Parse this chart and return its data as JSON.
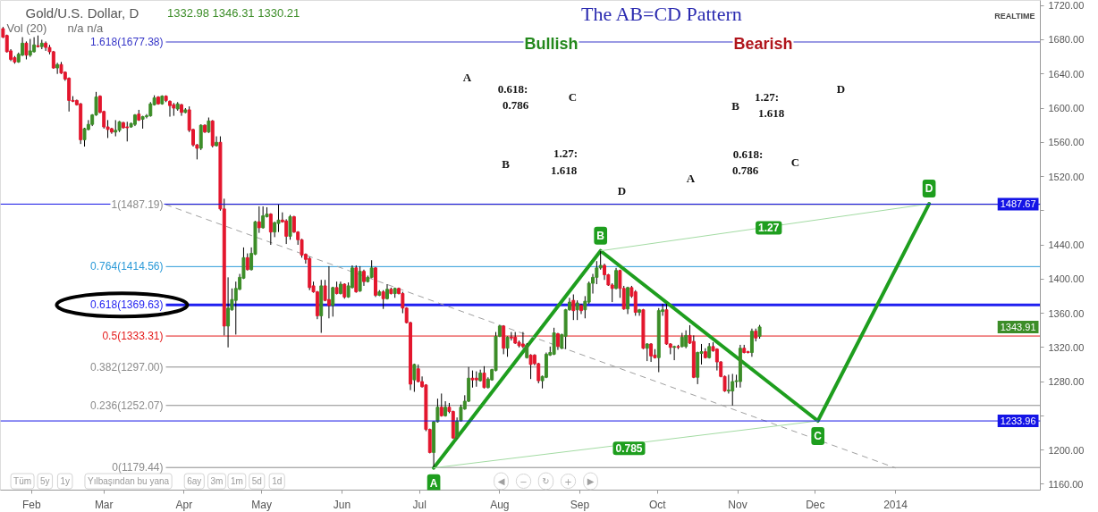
{
  "chart_data": {
    "type": "candlestick",
    "title": "Gold/U.S. Dollar, D",
    "xlim": [
      "2013-01-20",
      "2014-02-26"
    ],
    "ylim": [
      1153,
      1726
    ],
    "xticks": [
      {
        "value": "2013-02",
        "label": "Feb"
      },
      {
        "value": "2013-03",
        "label": "Mar"
      },
      {
        "value": "2013-04",
        "label": "Apr"
      },
      {
        "value": "2013-05",
        "label": "May"
      },
      {
        "value": "2013-06",
        "label": "Jun"
      },
      {
        "value": "2013-07",
        "label": "Jul"
      },
      {
        "value": "2013-08",
        "label": "Aug"
      },
      {
        "value": "2013-09",
        "label": "Sep"
      },
      {
        "value": "2013-10",
        "label": "Oct"
      },
      {
        "value": "2013-11",
        "label": "Nov"
      },
      {
        "value": "2013-12",
        "label": "Dec"
      },
      {
        "value": "2014-01",
        "label": "2014"
      }
    ],
    "yticks": [
      {
        "value": 1160,
        "label": "1160.00"
      },
      {
        "value": 1200,
        "label": "1200.00"
      },
      {
        "value": 1240,
        "label": null
      },
      {
        "value": 1280,
        "label": "1280.00"
      },
      {
        "value": 1320,
        "label": "1320.00"
      },
      {
        "value": 1360,
        "label": "1360.00"
      },
      {
        "value": 1400,
        "label": "1400.00"
      },
      {
        "value": 1440,
        "label": "1440.00"
      },
      {
        "value": 1480,
        "label": null
      },
      {
        "value": 1520,
        "label": "1520.00"
      },
      {
        "value": 1560,
        "label": "1560.00"
      },
      {
        "value": 1600,
        "label": "1600.00"
      },
      {
        "value": 1640,
        "label": "1640.00"
      },
      {
        "value": 1680,
        "label": "1680.00"
      },
      {
        "value": 1720,
        "label": "1720.00"
      }
    ],
    "x": [
      "2013-01-21T00:00",
      "2013-01-22T12:00",
      "2013-01-24T00:00",
      "2013-01-25T12:00",
      "2013-01-27T00:00",
      "2013-01-28T12:00",
      "2013-01-30T00:00",
      "2013-01-31T12:00",
      "2013-02-02T00:00",
      "2013-02-03T12:00",
      "2013-02-05T00:00",
      "2013-02-06T12:00",
      "2013-02-08T00:00",
      "2013-02-09T12:00",
      "2013-02-11T00:00",
      "2013-02-12T12:00",
      "2013-02-14T00:00",
      "2013-02-15T12:00",
      "2013-02-17T00:00",
      "2013-02-18T12:00",
      "2013-02-20T00:00",
      "2013-02-21T12:00",
      "2013-02-23T00:00",
      "2013-02-24T12:00",
      "2013-02-26T00:00",
      "2013-02-27T12:00",
      "2013-03-01T00:00",
      "2013-03-02T12:00",
      "2013-03-04T00:00",
      "2013-03-05T12:00",
      "2013-03-07T00:00",
      "2013-03-08T12:00",
      "2013-03-10T00:00",
      "2013-03-11T12:00",
      "2013-03-13T00:00",
      "2013-03-14T12:00",
      "2013-03-16T00:00",
      "2013-03-17T12:00",
      "2013-03-19T00:00",
      "2013-03-20T12:00",
      "2013-03-22T00:00",
      "2013-03-23T12:00",
      "2013-03-25T00:00",
      "2013-03-26T12:00",
      "2013-03-28T00:00",
      "2013-03-29T12:00",
      "2013-03-31T00:00",
      "2013-04-01T12:00",
      "2013-04-03T00:00",
      "2013-04-04T12:00",
      "2013-04-06T00:00",
      "2013-04-07T12:00",
      "2013-04-09T00:00",
      "2013-04-10T12:00",
      "2013-04-12T00:00",
      "2013-04-13T12:00",
      "2013-04-15T00:00",
      "2013-04-16T12:00",
      "2013-04-18T00:00",
      "2013-04-19T12:00",
      "2013-04-21T00:00",
      "2013-04-22T12:00",
      "2013-04-24T00:00",
      "2013-04-25T12:00",
      "2013-04-27T00:00",
      "2013-04-28T12:00",
      "2013-04-30T00:00",
      "2013-05-01T12:00",
      "2013-05-03T00:00",
      "2013-05-04T12:00",
      "2013-05-06T00:00",
      "2013-05-07T12:00",
      "2013-05-09T00:00",
      "2013-05-10T12:00",
      "2013-05-12T00:00",
      "2013-05-13T12:00",
      "2013-05-15T00:00",
      "2013-05-16T12:00",
      "2013-05-18T00:00",
      "2013-05-19T12:00",
      "2013-05-21T00:00",
      "2013-05-22T12:00",
      "2013-05-24T00:00",
      "2013-05-25T12:00",
      "2013-05-27T00:00",
      "2013-05-28T12:00",
      "2013-05-30T00:00",
      "2013-05-31T12:00",
      "2013-06-02T00:00",
      "2013-06-03T12:00",
      "2013-06-05T00:00",
      "2013-06-06T12:00",
      "2013-06-08T00:00",
      "2013-06-09T12:00",
      "2013-06-11T00:00",
      "2013-06-12T12:00",
      "2013-06-14T00:00",
      "2013-06-15T12:00",
      "2013-06-17T00:00",
      "2013-06-18T12:00",
      "2013-06-20T00:00",
      "2013-06-21T12:00",
      "2013-06-23T00:00",
      "2013-06-24T12:00",
      "2013-06-26T00:00",
      "2013-06-27T12:00",
      "2013-06-29T00:00",
      "2013-06-30T12:00",
      "2013-07-02T00:00",
      "2013-07-03T12:00",
      "2013-07-05T00:00",
      "2013-07-06T12:00",
      "2013-07-08T00:00",
      "2013-07-09T12:00",
      "2013-07-11T00:00",
      "2013-07-12T12:00",
      "2013-07-14T00:00",
      "2013-07-15T12:00",
      "2013-07-17T00:00",
      "2013-07-18T12:00",
      "2013-07-20T00:00",
      "2013-07-21T12:00",
      "2013-07-23T00:00",
      "2013-07-24T12:00",
      "2013-07-26T00:00",
      "2013-07-27T12:00",
      "2013-07-29T00:00",
      "2013-07-30T12:00",
      "2013-08-01T00:00",
      "2013-08-02T12:00",
      "2013-08-04T00:00",
      "2013-08-05T12:00",
      "2013-08-07T00:00",
      "2013-08-08T12:00",
      "2013-08-10T00:00",
      "2013-08-11T12:00",
      "2013-08-13T00:00",
      "2013-08-14T12:00",
      "2013-08-16T00:00",
      "2013-08-17T12:00",
      "2013-08-19T00:00",
      "2013-08-20T12:00",
      "2013-08-22T00:00",
      "2013-08-23T12:00",
      "2013-08-25T00:00",
      "2013-08-26T12:00",
      "2013-08-28T00:00",
      "2013-08-29T12:00",
      "2013-08-31T00:00",
      "2013-09-01T12:00",
      "2013-09-03T00:00",
      "2013-09-04T12:00",
      "2013-09-06T00:00",
      "2013-09-07T12:00",
      "2013-09-09T00:00",
      "2013-09-10T12:00",
      "2013-09-12T00:00",
      "2013-09-13T12:00",
      "2013-09-15T00:00",
      "2013-09-16T12:00",
      "2013-09-18T00:00",
      "2013-09-19T12:00",
      "2013-09-21T00:00",
      "2013-09-22T12:00",
      "2013-09-24T00:00",
      "2013-09-25T12:00",
      "2013-09-27T00:00",
      "2013-09-28T12:00",
      "2013-09-30T00:00",
      "2013-10-01T12:00",
      "2013-10-03T00:00",
      "2013-10-04T12:00",
      "2013-10-06T00:00",
      "2013-10-07T12:00",
      "2013-10-09T00:00",
      "2013-10-10T12:00",
      "2013-10-12T00:00",
      "2013-10-13T12:00",
      "2013-10-15T00:00",
      "2013-10-16T12:00",
      "2013-10-18T00:00",
      "2013-10-19T12:00",
      "2013-10-21T00:00",
      "2013-10-22T12:00",
      "2013-10-24T00:00",
      "2013-10-25T12:00",
      "2013-10-27T00:00",
      "2013-10-28T12:00",
      "2013-10-30T00:00",
      "2013-10-31T12:00",
      "2013-11-02T00:00",
      "2013-11-03T12:00",
      "2013-11-05T00:00",
      "2013-11-06T12:00",
      "2013-11-08T00:00",
      "2013-11-09T12:00"
    ],
    "ohlc": [
      [
        1693,
        1695,
        1682,
        1683
      ],
      [
        1685,
        1686,
        1665,
        1666
      ],
      [
        1667,
        1669,
        1655,
        1657
      ],
      [
        1659,
        1661,
        1652,
        1654
      ],
      [
        1654,
        1665,
        1653,
        1663
      ],
      [
        1662,
        1683,
        1661,
        1676
      ],
      [
        1676,
        1678,
        1657,
        1662
      ],
      [
        1662,
        1681,
        1660,
        1667
      ],
      [
        1666,
        1683,
        1665,
        1674
      ],
      [
        1673,
        1685,
        1671,
        1672
      ],
      [
        1672,
        1680,
        1669,
        1676
      ],
      [
        1676,
        1678,
        1667,
        1671
      ],
      [
        1671,
        1674,
        1663,
        1666
      ],
      [
        1666,
        1667,
        1646,
        1647
      ],
      [
        1647,
        1653,
        1640,
        1651
      ],
      [
        1651,
        1654,
        1640,
        1641
      ],
      [
        1642,
        1643,
        1632,
        1634
      ],
      [
        1635,
        1636,
        1596,
        1609
      ],
      [
        1609,
        1614,
        1607,
        1608
      ],
      [
        1609,
        1610,
        1603,
        1604
      ],
      [
        1605,
        1606,
        1558,
        1563
      ],
      [
        1563,
        1577,
        1555,
        1576
      ],
      [
        1575,
        1586,
        1574,
        1581
      ],
      [
        1581,
        1593,
        1579,
        1592
      ],
      [
        1592,
        1619,
        1591,
        1613
      ],
      [
        1614,
        1615,
        1594,
        1595
      ],
      [
        1596,
        1597,
        1576,
        1578
      ],
      [
        1578,
        1586,
        1565,
        1575
      ],
      [
        1576,
        1577,
        1570,
        1572
      ],
      [
        1572,
        1586,
        1567,
        1574
      ],
      [
        1574,
        1585,
        1572,
        1584
      ],
      [
        1583,
        1584,
        1576,
        1577
      ],
      [
        1578,
        1584,
        1561,
        1577
      ],
      [
        1578,
        1583,
        1577,
        1582
      ],
      [
        1581,
        1593,
        1579,
        1592
      ],
      [
        1593,
        1598,
        1585,
        1586
      ],
      [
        1587,
        1591,
        1576,
        1590
      ],
      [
        1590,
        1593,
        1588,
        1591
      ],
      [
        1591,
        1607,
        1590,
        1605
      ],
      [
        1604,
        1615,
        1603,
        1612
      ],
      [
        1613,
        1614,
        1604,
        1605
      ],
      [
        1605,
        1615,
        1604,
        1614
      ],
      [
        1614,
        1615,
        1607,
        1609
      ],
      [
        1608,
        1609,
        1590,
        1603
      ],
      [
        1604,
        1606,
        1591,
        1600
      ],
      [
        1599,
        1607,
        1597,
        1605
      ],
      [
        1604,
        1605,
        1591,
        1595
      ],
      [
        1595,
        1600,
        1594,
        1598
      ],
      [
        1598,
        1602,
        1572,
        1574
      ],
      [
        1575,
        1576,
        1555,
        1557
      ],
      [
        1557,
        1558,
        1540,
        1553
      ],
      [
        1553,
        1581,
        1551,
        1580
      ],
      [
        1580,
        1581,
        1571,
        1572
      ],
      [
        1572,
        1589,
        1571,
        1585
      ],
      [
        1585,
        1586,
        1554,
        1556
      ],
      [
        1556,
        1567,
        1555,
        1560
      ],
      [
        1560,
        1567,
        1480,
        1482
      ],
      [
        1482,
        1494,
        1334,
        1345
      ],
      [
        1345,
        1402,
        1320,
        1366
      ],
      [
        1364,
        1389,
        1363,
        1376
      ],
      [
        1375,
        1397,
        1335,
        1389
      ],
      [
        1388,
        1406,
        1387,
        1402
      ],
      [
        1401,
        1437,
        1400,
        1425
      ],
      [
        1425,
        1430,
        1410,
        1411
      ],
      [
        1411,
        1437,
        1410,
        1430
      ],
      [
        1429,
        1468,
        1428,
        1467
      ],
      [
        1467,
        1485,
        1454,
        1460
      ],
      [
        1460,
        1485,
        1459,
        1474
      ],
      [
        1473,
        1484,
        1472,
        1476
      ],
      [
        1476,
        1477,
        1440,
        1455
      ],
      [
        1455,
        1467,
        1449,
        1466
      ],
      [
        1465,
        1487,
        1455,
        1469
      ],
      [
        1469,
        1478,
        1466,
        1467
      ],
      [
        1468,
        1470,
        1441,
        1450
      ],
      [
        1450,
        1475,
        1446,
        1473
      ],
      [
        1473,
        1474,
        1454,
        1455
      ],
      [
        1455,
        1456,
        1440,
        1446
      ],
      [
        1446,
        1447,
        1425,
        1428
      ],
      [
        1429,
        1430,
        1418,
        1423
      ],
      [
        1424,
        1426,
        1387,
        1390
      ],
      [
        1392,
        1397,
        1384,
        1385
      ],
      [
        1385,
        1386,
        1353,
        1357
      ],
      [
        1357,
        1399,
        1337,
        1392
      ],
      [
        1392,
        1399,
        1374,
        1375
      ],
      [
        1376,
        1415,
        1354,
        1369
      ],
      [
        1369,
        1391,
        1356,
        1390
      ],
      [
        1390,
        1397,
        1382,
        1383
      ],
      [
        1383,
        1397,
        1382,
        1394
      ],
      [
        1394,
        1395,
        1377,
        1379
      ],
      [
        1379,
        1396,
        1378,
        1392
      ],
      [
        1390,
        1416,
        1389,
        1413
      ],
      [
        1413,
        1416,
        1384,
        1385
      ],
      [
        1386,
        1415,
        1385,
        1409
      ],
      [
        1409,
        1411,
        1392,
        1397
      ],
      [
        1397,
        1404,
        1396,
        1402
      ],
      [
        1402,
        1422,
        1401,
        1413
      ],
      [
        1413,
        1414,
        1379,
        1381
      ],
      [
        1381,
        1387,
        1380,
        1385
      ],
      [
        1385,
        1387,
        1365,
        1377
      ],
      [
        1377,
        1394,
        1376,
        1388
      ],
      [
        1388,
        1390,
        1382,
        1383
      ],
      [
        1383,
        1390,
        1378,
        1389
      ],
      [
        1389,
        1390,
        1382,
        1383
      ],
      [
        1383,
        1385,
        1360,
        1366
      ],
      [
        1366,
        1367,
        1348,
        1349
      ],
      [
        1349,
        1350,
        1270,
        1277
      ],
      [
        1282,
        1301,
        1268,
        1300
      ],
      [
        1295,
        1300,
        1279,
        1280
      ],
      [
        1280,
        1286,
        1273,
        1274
      ],
      [
        1276,
        1277,
        1222,
        1224
      ],
      [
        1224,
        1225,
        1196,
        1197
      ],
      [
        1197,
        1234,
        1180,
        1233
      ],
      [
        1233,
        1260,
        1232,
        1250
      ],
      [
        1250,
        1266,
        1239,
        1240
      ],
      [
        1240,
        1257,
        1239,
        1250
      ],
      [
        1250,
        1255,
        1243,
        1245
      ],
      [
        1245,
        1246,
        1213,
        1214
      ],
      [
        1214,
        1238,
        1213,
        1234
      ],
      [
        1234,
        1253,
        1233,
        1250
      ],
      [
        1248,
        1264,
        1247,
        1257
      ],
      [
        1257,
        1297,
        1256,
        1284
      ],
      [
        1284,
        1293,
        1273,
        1282
      ],
      [
        1284,
        1292,
        1274,
        1282
      ],
      [
        1281,
        1294,
        1280,
        1290
      ],
      [
        1290,
        1298,
        1272,
        1273
      ],
      [
        1273,
        1285,
        1272,
        1283
      ],
      [
        1282,
        1295,
        1281,
        1294
      ],
      [
        1293,
        1338,
        1292,
        1333
      ],
      [
        1333,
        1346,
        1332,
        1345
      ],
      [
        1345,
        1346,
        1312,
        1319
      ],
      [
        1319,
        1333,
        1309,
        1332
      ],
      [
        1332,
        1338,
        1328,
        1331
      ],
      [
        1332,
        1338,
        1324,
        1325
      ],
      [
        1326,
        1328,
        1320,
        1322
      ],
      [
        1324,
        1338,
        1319,
        1321
      ],
      [
        1308,
        1325,
        1307,
        1323
      ],
      [
        1311,
        1312,
        1283,
        1300
      ],
      [
        1311,
        1312,
        1299,
        1301
      ],
      [
        1301,
        1302,
        1278,
        1281
      ],
      [
        1281,
        1287,
        1272,
        1286
      ],
      [
        1285,
        1314,
        1284,
        1312
      ],
      [
        1311,
        1321,
        1310,
        1314
      ],
      [
        1312,
        1343,
        1311,
        1337
      ],
      [
        1336,
        1337,
        1317,
        1321
      ],
      [
        1319,
        1336,
        1318,
        1335
      ],
      [
        1333,
        1365,
        1318,
        1364
      ],
      [
        1364,
        1378,
        1363,
        1373
      ],
      [
        1375,
        1382,
        1352,
        1363
      ],
      [
        1364,
        1375,
        1352,
        1372
      ],
      [
        1369,
        1371,
        1359,
        1363
      ],
      [
        1364,
        1380,
        1354,
        1374
      ],
      [
        1373,
        1397,
        1371,
        1395
      ],
      [
        1395,
        1406,
        1383,
        1402
      ],
      [
        1402,
        1421,
        1394,
        1413
      ],
      [
        1413,
        1433,
        1411,
        1416
      ],
      [
        1416,
        1418,
        1399,
        1405
      ],
      [
        1405,
        1406,
        1392,
        1393
      ],
      [
        1393,
        1395,
        1373,
        1389
      ],
      [
        1389,
        1413,
        1388,
        1410
      ],
      [
        1410,
        1411,
        1378,
        1389
      ],
      [
        1389,
        1392,
        1364,
        1365
      ],
      [
        1365,
        1391,
        1359,
        1390
      ],
      [
        1390,
        1392,
        1378,
        1380
      ],
      [
        1385,
        1387,
        1357,
        1361
      ],
      [
        1361,
        1365,
        1357,
        1364
      ],
      [
        1364,
        1365,
        1318,
        1319
      ],
      [
        1319,
        1325,
        1304,
        1324
      ],
      [
        1324,
        1325,
        1303,
        1310
      ],
      [
        1311,
        1318,
        1307,
        1308
      ],
      [
        1308,
        1366,
        1291,
        1363
      ],
      [
        1362,
        1371,
        1357,
        1364
      ],
      [
        1364,
        1371,
        1323,
        1324
      ],
      [
        1324,
        1325,
        1312,
        1320
      ],
      [
        1320,
        1322,
        1305,
        1321
      ],
      [
        1321,
        1323,
        1318,
        1320
      ],
      [
        1321,
        1337,
        1320,
        1332
      ],
      [
        1321,
        1340,
        1319,
        1334
      ],
      [
        1334,
        1346,
        1324,
        1325
      ],
      [
        1327,
        1334,
        1284,
        1285
      ],
      [
        1285,
        1315,
        1277,
        1314
      ],
      [
        1313,
        1324,
        1300,
        1315
      ],
      [
        1315,
        1319,
        1307,
        1308
      ],
      [
        1308,
        1325,
        1307,
        1321
      ],
      [
        1321,
        1326,
        1315,
        1316
      ],
      [
        1318,
        1319,
        1293,
        1303
      ],
      [
        1303,
        1304,
        1285,
        1286
      ],
      [
        1286,
        1287,
        1268,
        1269
      ],
      [
        1269,
        1288,
        1266,
        1270
      ],
      [
        1269,
        1289,
        1252,
        1280
      ],
      [
        1280,
        1288,
        1273,
        1281
      ],
      [
        1280,
        1323,
        1273,
        1319
      ],
      [
        1319,
        1323,
        1313,
        1314
      ],
      [
        1315,
        1316,
        1313,
        1314
      ],
      [
        1314,
        1342,
        1309,
        1339
      ],
      [
        1339,
        1342,
        1327,
        1331
      ],
      [
        1332.98,
        1346.31,
        1330.21,
        1343.91
      ]
    ],
    "colors": [
      "#e3162d",
      "#e3162d",
      "#e3162d",
      "#e3162d",
      "#3c8d28",
      "#3c8d28",
      "#e3162d",
      "#3c8d28",
      "#3c8d28",
      "#e3162d",
      "#3c8d28",
      "#e3162d",
      "#e3162d",
      "#e3162d",
      "#3c8d28",
      "#e3162d",
      "#e3162d",
      "#e3162d",
      "#e3162d",
      "#e3162d",
      "#e3162d",
      "#3c8d28",
      "#3c8d28",
      "#3c8d28",
      "#3c8d28",
      "#e3162d",
      "#e3162d",
      "#e3162d",
      "#e3162d",
      "#3c8d28",
      "#3c8d28",
      "#e3162d",
      "#e3162d",
      "#3c8d28",
      "#3c8d28",
      "#e3162d",
      "#3c8d28",
      "#3c8d28",
      "#3c8d28",
      "#3c8d28",
      "#e3162d",
      "#3c8d28",
      "#e3162d",
      "#e3162d",
      "#e3162d",
      "#3c8d28",
      "#e3162d",
      "#3c8d28",
      "#e3162d",
      "#e3162d",
      "#e3162d",
      "#3c8d28",
      "#e3162d",
      "#3c8d28",
      "#e3162d",
      "#3c8d28",
      "#e3162d",
      "#e3162d",
      "#3c8d28",
      "#3c8d28",
      "#3c8d28",
      "#3c8d28",
      "#3c8d28",
      "#e3162d",
      "#3c8d28",
      "#3c8d28",
      "#e3162d",
      "#3c8d28",
      "#3c8d28",
      "#e3162d",
      "#3c8d28",
      "#3c8d28",
      "#e3162d",
      "#e3162d",
      "#3c8d28",
      "#e3162d",
      "#e3162d",
      "#e3162d",
      "#e3162d",
      "#e3162d",
      "#e3162d",
      "#e3162d",
      "#3c8d28",
      "#e3162d",
      "#e3162d",
      "#3c8d28",
      "#e3162d",
      "#3c8d28",
      "#e3162d",
      "#3c8d28",
      "#3c8d28",
      "#e3162d",
      "#3c8d28",
      "#e3162d",
      "#3c8d28",
      "#3c8d28",
      "#e3162d",
      "#3c8d28",
      "#e3162d",
      "#3c8d28",
      "#e3162d",
      "#3c8d28",
      "#e3162d",
      "#e3162d",
      "#e3162d",
      "#e3162d",
      "#3c8d28",
      "#e3162d",
      "#e3162d",
      "#e3162d",
      "#e3162d",
      "#3c8d28",
      "#3c8d28",
      "#e3162d",
      "#3c8d28",
      "#e3162d",
      "#e3162d",
      "#3c8d28",
      "#3c8d28",
      "#3c8d28",
      "#3c8d28",
      "#e3162d",
      "#e3162d",
      "#3c8d28",
      "#e3162d",
      "#3c8d28",
      "#3c8d28",
      "#3c8d28",
      "#3c8d28",
      "#e3162d",
      "#3c8d28",
      "#e3162d",
      "#e3162d",
      "#e3162d",
      "#e3162d",
      "#3c8d28",
      "#e3162d",
      "#e3162d",
      "#e3162d",
      "#3c8d28",
      "#3c8d28",
      "#3c8d28",
      "#3c8d28",
      "#e3162d",
      "#3c8d28",
      "#3c8d28",
      "#3c8d28",
      "#e3162d",
      "#3c8d28",
      "#e3162d",
      "#3c8d28",
      "#3c8d28",
      "#3c8d28",
      "#3c8d28",
      "#3c8d28",
      "#e3162d",
      "#e3162d",
      "#e3162d",
      "#3c8d28",
      "#e3162d",
      "#e3162d",
      "#3c8d28",
      "#e3162d",
      "#e3162d",
      "#3c8d28",
      "#e3162d",
      "#3c8d28",
      "#e3162d",
      "#e3162d",
      "#3c8d28",
      "#3c8d28",
      "#e3162d",
      "#e3162d",
      "#3c8d28",
      "#e3162d",
      "#3c8d28",
      "#3c8d28",
      "#e3162d",
      "#e3162d",
      "#3c8d28",
      "#3c8d28",
      "#e3162d",
      "#3c8d28",
      "#e3162d",
      "#e3162d",
      "#e3162d",
      "#e3162d",
      "#3c8d28",
      "#3c8d28",
      "#3c8d28",
      "#3c8d28",
      "#e3162d",
      "#e3162d",
      "#3c8d28",
      "#e3162d",
      "#3c8d28"
    ],
    "series": [
      {
        "type": "line",
        "color": "#1e9e1e",
        "x": [
          "2013-07-06T12:00",
          "2013-09-09T00:00",
          "2013-12-02",
          "2014-01-14"
        ],
        "values": [
          1179,
          1433,
          1234,
          1488
        ]
      },
      {
        "type": "line",
        "color": "#a3dba3",
        "x": [
          "2013-09-09T00:00",
          "2014-01-14"
        ],
        "values": [
          1433,
          1488
        ]
      },
      {
        "type": "line",
        "color": "#a3dba3",
        "x": [
          "2013-07-06T12:00",
          "2013-12-02"
        ],
        "values": [
          1179,
          1234
        ]
      },
      {
        "type": "line",
        "color": "#a0a0a0",
        "line_style": "dashed",
        "x": [
          "2013-03-25",
          "2014-01-01"
        ],
        "values": [
          1487,
          1179
        ]
      }
    ],
    "ref_lines": [
      {
        "axis": "y",
        "value": 1677.38,
        "label": "1.618(1677.38)",
        "color": "#3636c8"
      },
      {
        "axis": "y",
        "value": 1487.19,
        "label": "1(1487.19)",
        "color": "#8c8c8c"
      },
      {
        "axis": "y",
        "value": 1414.56,
        "label": "0.764(1414.56)",
        "color": "#2b9ad8"
      },
      {
        "axis": "y",
        "value": 1369.63,
        "label": "0.618(1369.63)",
        "color": "#1f1ff0"
      },
      {
        "axis": "y",
        "value": 1333.31,
        "label": "0.5(1333.31)",
        "color": "#e41b1b"
      },
      {
        "axis": "y",
        "value": 1297.0,
        "label": "0.382(1297.00)",
        "color": "#8c8c8c"
      },
      {
        "axis": "y",
        "value": 1252.07,
        "label": "0.236(1252.07)",
        "color": "#8c8c8c"
      },
      {
        "axis": "y",
        "value": 1179.44,
        "label": "0(1179.44)",
        "color": "#8c8c8c"
      },
      {
        "axis": "y",
        "value": 1487.67,
        "color": "#1414e6"
      },
      {
        "axis": "y",
        "value": 1233.96,
        "color": "#1414e6"
      }
    ],
    "annotations": [
      "1332.98 1346.31 1330.21",
      "1343.91",
      "Vol (20)",
      "n/a n/a",
      "REALTIME",
      "The AB=CD Pattern",
      "Bullish",
      "Bearish",
      "A",
      "0.618:",
      "0.786",
      "C",
      "B",
      "1.27:",
      "1.618",
      "D",
      "D",
      "B",
      "1.27:",
      "1.618",
      "0.618:",
      "0.786",
      "C",
      "A",
      "Tüm",
      "5y",
      "1y",
      "Yılbaşından bu yana",
      "6ay",
      "3m",
      "1m",
      "5d",
      "1d",
      "◀",
      "−",
      "↻",
      "+",
      "▶",
      {
        "text": "A",
        "x": "2013-07-06T12:00",
        "y": 1179
      },
      {
        "text": "B",
        "x": "2013-09-09T00:00",
        "y": 1433
      },
      {
        "text": "C",
        "x": "2013-12-02",
        "y": 1234
      },
      {
        "text": "D",
        "x": "2014-01-14",
        "y": 1488
      },
      {
        "text": "1.27",
        "x": "2013-11-13",
        "y": 1460
      },
      {
        "text": "0.785",
        "x": "2013-09-20",
        "y": 1202
      },
      {
        "text": "1487.67",
        "x": "2014-02-26",
        "y": 1487.67
      },
      {
        "text": "1233.96",
        "x": "2014-02-26",
        "y": 1233.96
      }
    ]
  }
}
